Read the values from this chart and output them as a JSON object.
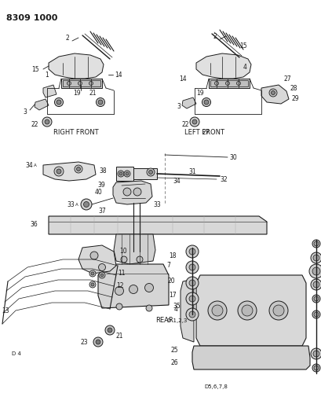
{
  "title": "8309 1000",
  "bg": "#ffffff",
  "fg": "#1a1a1a",
  "lw": 0.6,
  "figsize": [
    4.1,
    5.33
  ],
  "dpi": 100,
  "labels": {
    "right_front": "RIGHT FRONT",
    "left_front": "LEFT FRONT",
    "rear": "REAR",
    "d4": "D 4",
    "d123": "D 1,2,3",
    "d5678": "D5,6,7,8"
  }
}
